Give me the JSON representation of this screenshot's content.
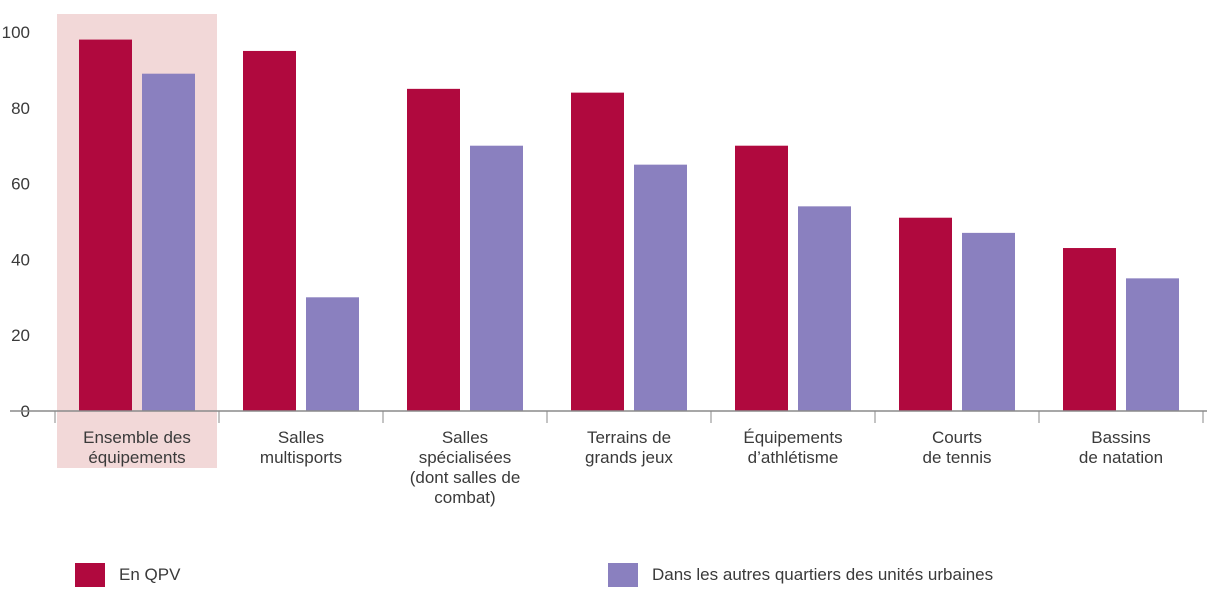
{
  "chart_data": {
    "type": "bar",
    "title": "",
    "xlabel": "",
    "ylabel": "",
    "ylim": [
      0,
      100
    ],
    "yticks": [
      0,
      20,
      40,
      60,
      80,
      100
    ],
    "grid": false,
    "legend_position": "bottom",
    "highlighted_category": 0,
    "categories": [
      [
        "Ensemble des",
        "équipements"
      ],
      [
        "Salles",
        "multisports"
      ],
      [
        "Salles",
        "spécialisées",
        "(dont salles de",
        "combat)"
      ],
      [
        "Terrains de",
        "grands jeux"
      ],
      [
        "Équipements",
        "d’athlétisme"
      ],
      [
        "Courts",
        "de tennis"
      ],
      [
        "Bassins",
        "de natation"
      ]
    ],
    "series": [
      {
        "name": "En QPV",
        "color": "#b0093e",
        "values": [
          98,
          95,
          85,
          84,
          70,
          51,
          43
        ]
      },
      {
        "name": "Dans les autres quartiers des unités urbaines",
        "color": "#8a80bf",
        "values": [
          89,
          30,
          70,
          65,
          54,
          47,
          35
        ]
      }
    ],
    "colors": {
      "highlight": "#f2d8d8",
      "axis": "#8a8a8a",
      "text": "#3a3a3a"
    }
  }
}
